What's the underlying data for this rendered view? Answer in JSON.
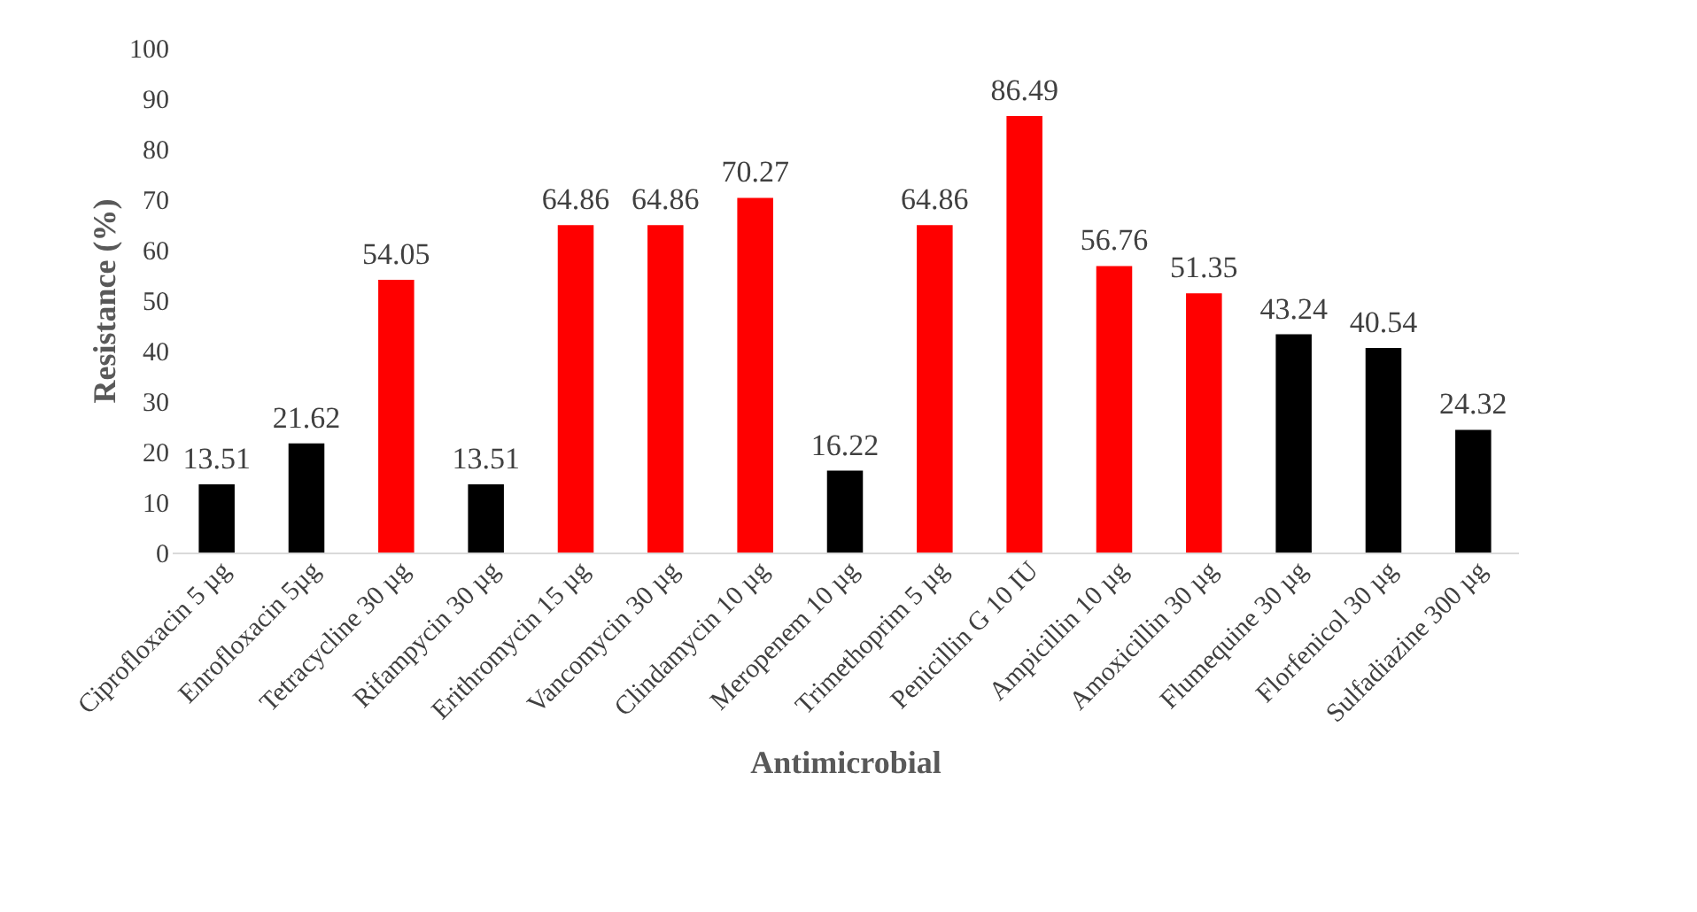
{
  "chart_data": {
    "type": "bar",
    "xlabel": "Antimicrobial",
    "ylabel": "Resistance (%)",
    "categories": [
      "Ciprofloxacin 5 µg",
      "Enrofloxacin 5µg",
      "Tetracycline 30 µg",
      "Rifampycin 30 µg",
      "Erithromycin 15 µg",
      "Vancomycin 30 µg",
      "Clindamycin 10 µg",
      "Meropenem 10 µg",
      "Trimethoprim 5 µg",
      "Penicillin G 10 IU",
      "Ampicillin 10 µg",
      "Amoxicillin 30 µg",
      "Flumequine 30 µg",
      "Florfenicol 30 µg",
      "Sulfadiazine 300 µg"
    ],
    "values": [
      13.51,
      21.62,
      54.05,
      13.51,
      64.86,
      64.86,
      70.27,
      16.22,
      64.86,
      86.49,
      56.76,
      51.35,
      43.24,
      40.54,
      24.32
    ],
    "colors": [
      "#000000",
      "#000000",
      "#ff0000",
      "#000000",
      "#ff0000",
      "#ff0000",
      "#ff0000",
      "#000000",
      "#ff0000",
      "#ff0000",
      "#ff0000",
      "#ff0000",
      "#000000",
      "#000000",
      "#000000"
    ],
    "ylim": [
      0,
      100
    ],
    "yticks": [
      0,
      10,
      20,
      30,
      40,
      50,
      60,
      70,
      80,
      90,
      100
    ],
    "data_labels": true,
    "grid": false
  }
}
